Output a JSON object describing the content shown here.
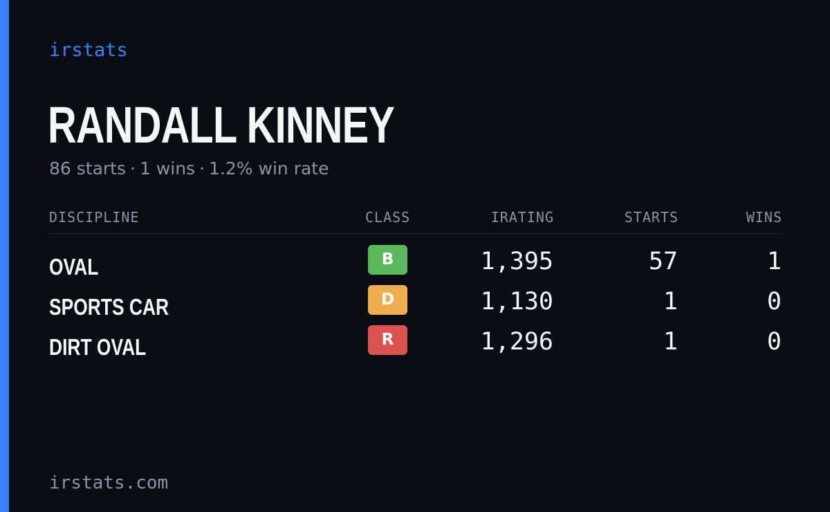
{
  "brand": "irstats",
  "driver": {
    "name": "RANDALL KINNEY",
    "starts_text": "86 starts",
    "wins_text": "1 wins",
    "win_rate_text": "1.2% win rate",
    "separator": "·"
  },
  "table": {
    "headers": {
      "discipline": "DISCIPLINE",
      "class": "CLASS",
      "irating": "IRATING",
      "starts": "STARTS",
      "wins": "WINS"
    },
    "rows": [
      {
        "discipline": "OVAL",
        "class": "B",
        "class_color": "#5cb85c",
        "irating": "1,395",
        "starts": "57",
        "wins": "1"
      },
      {
        "discipline": "SPORTS CAR",
        "class": "D",
        "class_color": "#f0ad4e",
        "irating": "1,130",
        "starts": "1",
        "wins": "0"
      },
      {
        "discipline": "DIRT OVAL",
        "class": "R",
        "class_color": "#d9534f",
        "irating": "1,296",
        "starts": "1",
        "wins": "0"
      }
    ]
  },
  "footer": {
    "url": "irstats.com"
  },
  "colors": {
    "background": "#0a0d14",
    "accent": "#3b82f6",
    "text_primary": "#f5f6f8",
    "text_muted": "#8b95a5"
  }
}
